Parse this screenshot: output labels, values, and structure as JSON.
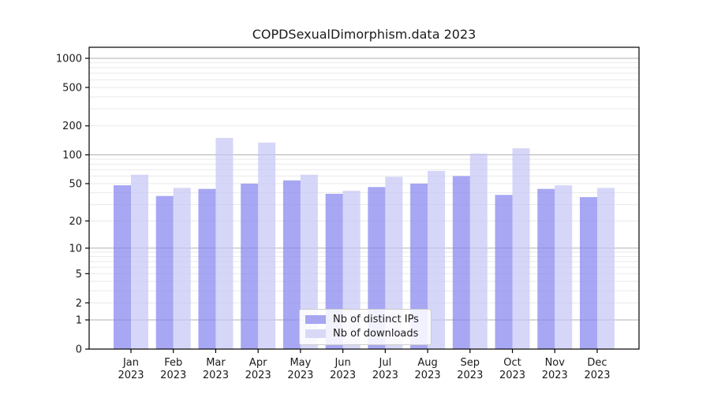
{
  "page": {
    "background": "#ffffff",
    "text_color": "#1a1a1a"
  },
  "chart_data": {
    "type": "bar",
    "title": "COPDSexualDimorphism.data 2023",
    "categories": [
      "Jan",
      "Feb",
      "Mar",
      "Apr",
      "May",
      "Jun",
      "Jul",
      "Aug",
      "Sep",
      "Oct",
      "Nov",
      "Dec"
    ],
    "x_tick_second_line": [
      "2023",
      "2023",
      "2023",
      "2023",
      "2023",
      "2023",
      "2023",
      "2023",
      "2023",
      "2023",
      "2023",
      "2023"
    ],
    "series": [
      {
        "name": "Nb of distinct IPs",
        "color": "#8585ee",
        "legend_color": "#a6a6f1",
        "values": [
          48,
          37,
          44,
          50,
          54,
          39,
          46,
          50,
          60,
          38,
          44,
          36
        ]
      },
      {
        "name": "Nb of downloads",
        "color": "#c6c6f5",
        "legend_color": "#d9d9f7",
        "values": [
          62,
          45,
          150,
          134,
          62,
          42,
          59,
          68,
          103,
          117,
          48,
          45
        ]
      }
    ],
    "yticks": [
      0,
      1,
      2,
      5,
      10,
      20,
      50,
      100,
      200,
      500,
      1000
    ],
    "ylim": [
      0,
      1300
    ],
    "yscale": "log10(v+1)",
    "xlabel": "",
    "ylabel": "",
    "grid": "major-and-minor",
    "grid_major_color": "#b0b0b0",
    "grid_minor_color": "#e9e9e9",
    "legend_position": "bottom-center"
  }
}
